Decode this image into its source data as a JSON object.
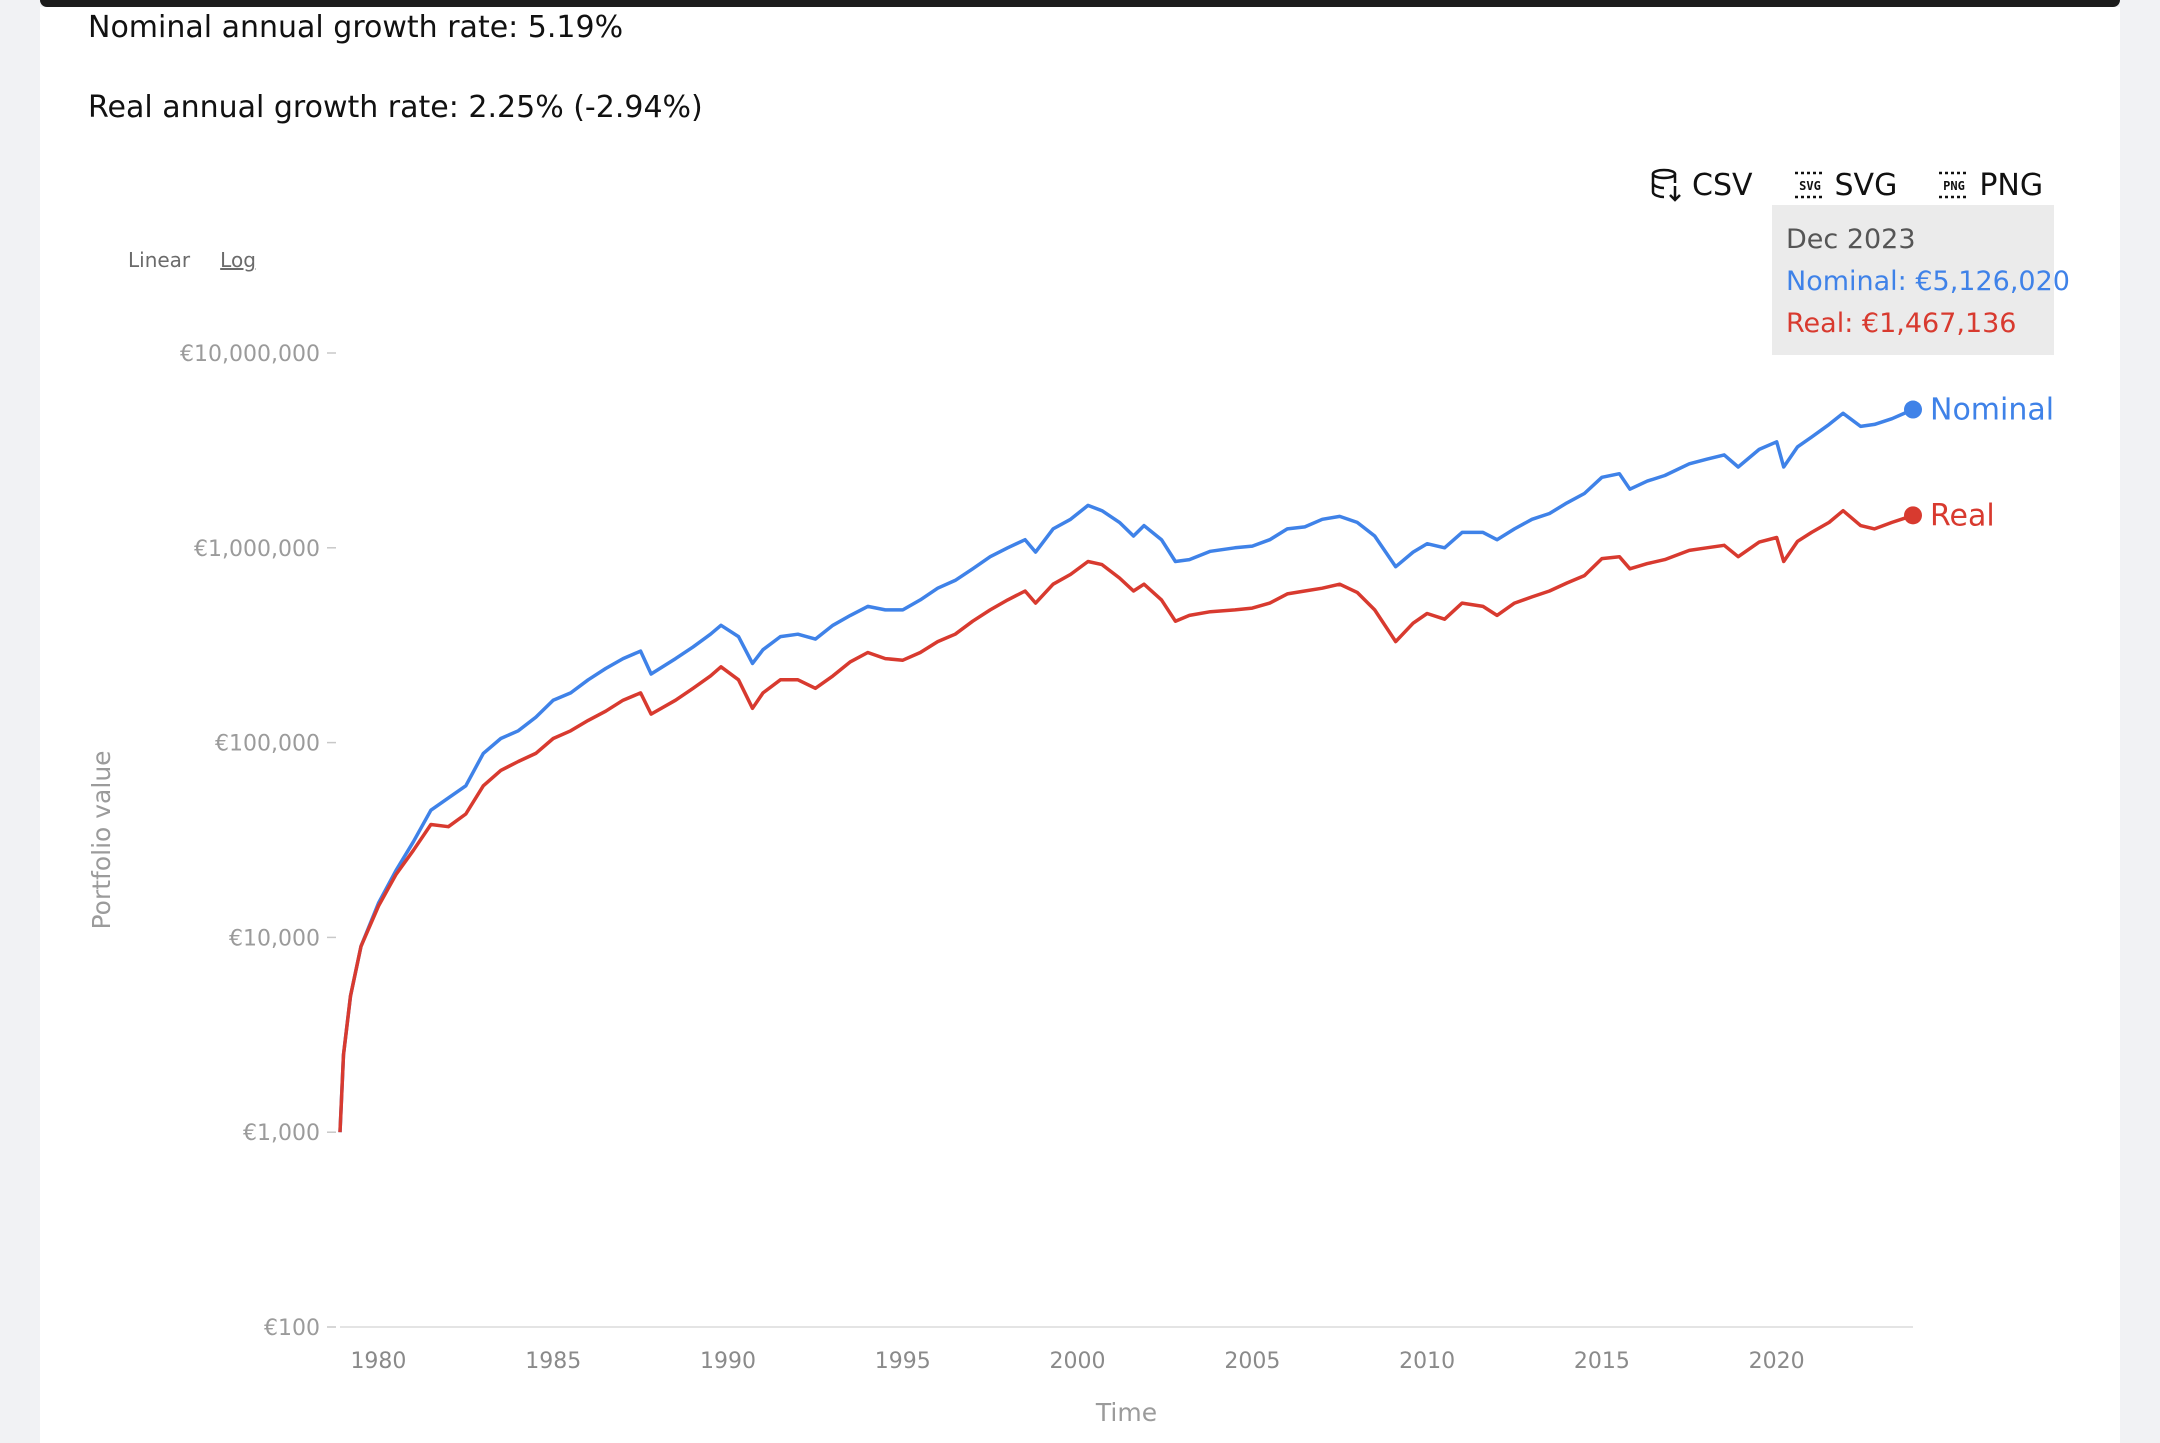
{
  "summary": {
    "nominal_rate": "Nominal annual growth rate: 5.19%",
    "real_rate": "Real annual growth rate: 2.25% (-2.94%)"
  },
  "exports": {
    "csv": "CSV",
    "svg": "SVG",
    "png": "PNG"
  },
  "scale_toggle": {
    "linear": "Linear",
    "log": "Log",
    "selected": "Log"
  },
  "tooltip": {
    "date": "Dec 2023",
    "nominal": "Nominal: €5,126,020",
    "real": "Real: €1,467,136"
  },
  "colors": {
    "nominal": "#3f82e8",
    "real": "#d83a2f"
  },
  "chart_data": {
    "type": "line",
    "xlabel": "Time",
    "ylabel": "Portfolio value",
    "y_scale": "log",
    "ylim": [
      100,
      10000000
    ],
    "xlim": [
      1978.9,
      2023.9
    ],
    "y_ticks": [
      {
        "value": 100,
        "label": "€100"
      },
      {
        "value": 1000,
        "label": "€1,000"
      },
      {
        "value": 10000,
        "label": "€10,000"
      },
      {
        "value": 100000,
        "label": "€100,000"
      },
      {
        "value": 1000000,
        "label": "€1,000,000"
      },
      {
        "value": 10000000,
        "label": "€10,000,000"
      }
    ],
    "x_ticks": [
      {
        "value": 1980,
        "label": "1980"
      },
      {
        "value": 1985,
        "label": "1985"
      },
      {
        "value": 1990,
        "label": "1990"
      },
      {
        "value": 1995,
        "label": "1995"
      },
      {
        "value": 2000,
        "label": "2000"
      },
      {
        "value": 2005,
        "label": "2005"
      },
      {
        "value": 2010,
        "label": "2010"
      },
      {
        "value": 2015,
        "label": "2015"
      },
      {
        "value": 2020,
        "label": "2020"
      }
    ],
    "series": [
      {
        "name": "Nominal",
        "points": [
          [
            1978.9,
            1000
          ],
          [
            1979.0,
            2500
          ],
          [
            1979.2,
            5000
          ],
          [
            1979.5,
            9000
          ],
          [
            1980.0,
            15000
          ],
          [
            1980.5,
            22000
          ],
          [
            1981.0,
            31000
          ],
          [
            1981.5,
            45000
          ],
          [
            1982.0,
            52000
          ],
          [
            1982.5,
            60000
          ],
          [
            1983.0,
            88000
          ],
          [
            1983.5,
            105000
          ],
          [
            1984.0,
            115000
          ],
          [
            1984.5,
            135000
          ],
          [
            1985.0,
            165000
          ],
          [
            1985.5,
            180000
          ],
          [
            1986.0,
            210000
          ],
          [
            1986.5,
            240000
          ],
          [
            1987.0,
            270000
          ],
          [
            1987.5,
            295000
          ],
          [
            1987.8,
            225000
          ],
          [
            1988.5,
            270000
          ],
          [
            1989.0,
            310000
          ],
          [
            1989.5,
            360000
          ],
          [
            1989.8,
            400000
          ],
          [
            1990.3,
            350000
          ],
          [
            1990.7,
            255000
          ],
          [
            1991.0,
            300000
          ],
          [
            1991.5,
            350000
          ],
          [
            1992.0,
            360000
          ],
          [
            1992.5,
            340000
          ],
          [
            1993.0,
            400000
          ],
          [
            1993.5,
            450000
          ],
          [
            1994.0,
            500000
          ],
          [
            1994.5,
            480000
          ],
          [
            1995.0,
            480000
          ],
          [
            1995.5,
            540000
          ],
          [
            1996.0,
            620000
          ],
          [
            1996.5,
            680000
          ],
          [
            1997.0,
            780000
          ],
          [
            1997.5,
            900000
          ],
          [
            1998.0,
            1000000
          ],
          [
            1998.5,
            1100000
          ],
          [
            1998.8,
            950000
          ],
          [
            1999.3,
            1250000
          ],
          [
            1999.8,
            1400000
          ],
          [
            2000.3,
            1650000
          ],
          [
            2000.7,
            1550000
          ],
          [
            2001.2,
            1350000
          ],
          [
            2001.6,
            1150000
          ],
          [
            2001.9,
            1300000
          ],
          [
            2002.4,
            1100000
          ],
          [
            2002.8,
            850000
          ],
          [
            2003.2,
            870000
          ],
          [
            2003.8,
            960000
          ],
          [
            2004.5,
            1000000
          ],
          [
            2005.0,
            1020000
          ],
          [
            2005.5,
            1100000
          ],
          [
            2006.0,
            1250000
          ],
          [
            2006.5,
            1280000
          ],
          [
            2007.0,
            1400000
          ],
          [
            2007.5,
            1450000
          ],
          [
            2008.0,
            1350000
          ],
          [
            2008.5,
            1150000
          ],
          [
            2009.1,
            800000
          ],
          [
            2009.6,
            950000
          ],
          [
            2010.0,
            1050000
          ],
          [
            2010.5,
            1000000
          ],
          [
            2011.0,
            1200000
          ],
          [
            2011.6,
            1200000
          ],
          [
            2012.0,
            1100000
          ],
          [
            2012.5,
            1250000
          ],
          [
            2013.0,
            1400000
          ],
          [
            2013.5,
            1500000
          ],
          [
            2014.0,
            1700000
          ],
          [
            2014.5,
            1900000
          ],
          [
            2015.0,
            2300000
          ],
          [
            2015.5,
            2400000
          ],
          [
            2015.8,
            2000000
          ],
          [
            2016.3,
            2200000
          ],
          [
            2016.8,
            2350000
          ],
          [
            2017.5,
            2700000
          ],
          [
            2018.0,
            2850000
          ],
          [
            2018.5,
            3000000
          ],
          [
            2018.9,
            2600000
          ],
          [
            2019.5,
            3200000
          ],
          [
            2020.0,
            3500000
          ],
          [
            2020.2,
            2600000
          ],
          [
            2020.6,
            3300000
          ],
          [
            2021.0,
            3700000
          ],
          [
            2021.5,
            4300000
          ],
          [
            2021.9,
            4900000
          ],
          [
            2022.4,
            4200000
          ],
          [
            2022.8,
            4300000
          ],
          [
            2023.3,
            4600000
          ],
          [
            2023.9,
            5126020
          ]
        ]
      },
      {
        "name": "Real",
        "points": [
          [
            1978.9,
            1000
          ],
          [
            1979.0,
            2500
          ],
          [
            1979.2,
            5000
          ],
          [
            1979.5,
            9000
          ],
          [
            1980.0,
            14500
          ],
          [
            1980.5,
            21000
          ],
          [
            1981.0,
            28000
          ],
          [
            1981.5,
            38000
          ],
          [
            1982.0,
            37000
          ],
          [
            1982.5,
            43000
          ],
          [
            1983.0,
            60000
          ],
          [
            1983.5,
            72000
          ],
          [
            1984.0,
            80000
          ],
          [
            1984.5,
            88000
          ],
          [
            1985.0,
            105000
          ],
          [
            1985.5,
            115000
          ],
          [
            1986.0,
            130000
          ],
          [
            1986.5,
            145000
          ],
          [
            1987.0,
            165000
          ],
          [
            1987.5,
            180000
          ],
          [
            1987.8,
            140000
          ],
          [
            1988.5,
            165000
          ],
          [
            1989.0,
            190000
          ],
          [
            1989.5,
            220000
          ],
          [
            1989.8,
            245000
          ],
          [
            1990.3,
            210000
          ],
          [
            1990.7,
            150000
          ],
          [
            1991.0,
            180000
          ],
          [
            1991.5,
            210000
          ],
          [
            1992.0,
            210000
          ],
          [
            1992.5,
            190000
          ],
          [
            1993.0,
            220000
          ],
          [
            1993.5,
            260000
          ],
          [
            1994.0,
            290000
          ],
          [
            1994.5,
            270000
          ],
          [
            1995.0,
            265000
          ],
          [
            1995.5,
            290000
          ],
          [
            1996.0,
            330000
          ],
          [
            1996.5,
            360000
          ],
          [
            1997.0,
            420000
          ],
          [
            1997.5,
            480000
          ],
          [
            1998.0,
            540000
          ],
          [
            1998.5,
            600000
          ],
          [
            1998.8,
            520000
          ],
          [
            1999.3,
            650000
          ],
          [
            1999.8,
            730000
          ],
          [
            2000.3,
            850000
          ],
          [
            2000.7,
            820000
          ],
          [
            2001.2,
            700000
          ],
          [
            2001.6,
            600000
          ],
          [
            2001.9,
            650000
          ],
          [
            2002.4,
            540000
          ],
          [
            2002.8,
            420000
          ],
          [
            2003.2,
            450000
          ],
          [
            2003.8,
            470000
          ],
          [
            2004.5,
            480000
          ],
          [
            2005.0,
            490000
          ],
          [
            2005.5,
            520000
          ],
          [
            2006.0,
            580000
          ],
          [
            2006.5,
            600000
          ],
          [
            2007.0,
            620000
          ],
          [
            2007.5,
            650000
          ],
          [
            2008.0,
            590000
          ],
          [
            2008.5,
            480000
          ],
          [
            2009.1,
            330000
          ],
          [
            2009.6,
            410000
          ],
          [
            2010.0,
            460000
          ],
          [
            2010.5,
            430000
          ],
          [
            2011.0,
            520000
          ],
          [
            2011.6,
            500000
          ],
          [
            2012.0,
            450000
          ],
          [
            2012.5,
            520000
          ],
          [
            2013.0,
            560000
          ],
          [
            2013.5,
            600000
          ],
          [
            2014.0,
            660000
          ],
          [
            2014.5,
            720000
          ],
          [
            2015.0,
            880000
          ],
          [
            2015.5,
            900000
          ],
          [
            2015.8,
            780000
          ],
          [
            2016.3,
            830000
          ],
          [
            2016.8,
            870000
          ],
          [
            2017.5,
            970000
          ],
          [
            2018.0,
            1000000
          ],
          [
            2018.5,
            1030000
          ],
          [
            2018.9,
            900000
          ],
          [
            2019.5,
            1070000
          ],
          [
            2020.0,
            1130000
          ],
          [
            2020.2,
            850000
          ],
          [
            2020.6,
            1080000
          ],
          [
            2021.0,
            1200000
          ],
          [
            2021.5,
            1350000
          ],
          [
            2021.9,
            1550000
          ],
          [
            2022.4,
            1300000
          ],
          [
            2022.8,
            1250000
          ],
          [
            2023.3,
            1350000
          ],
          [
            2023.9,
            1467136
          ]
        ]
      }
    ]
  }
}
